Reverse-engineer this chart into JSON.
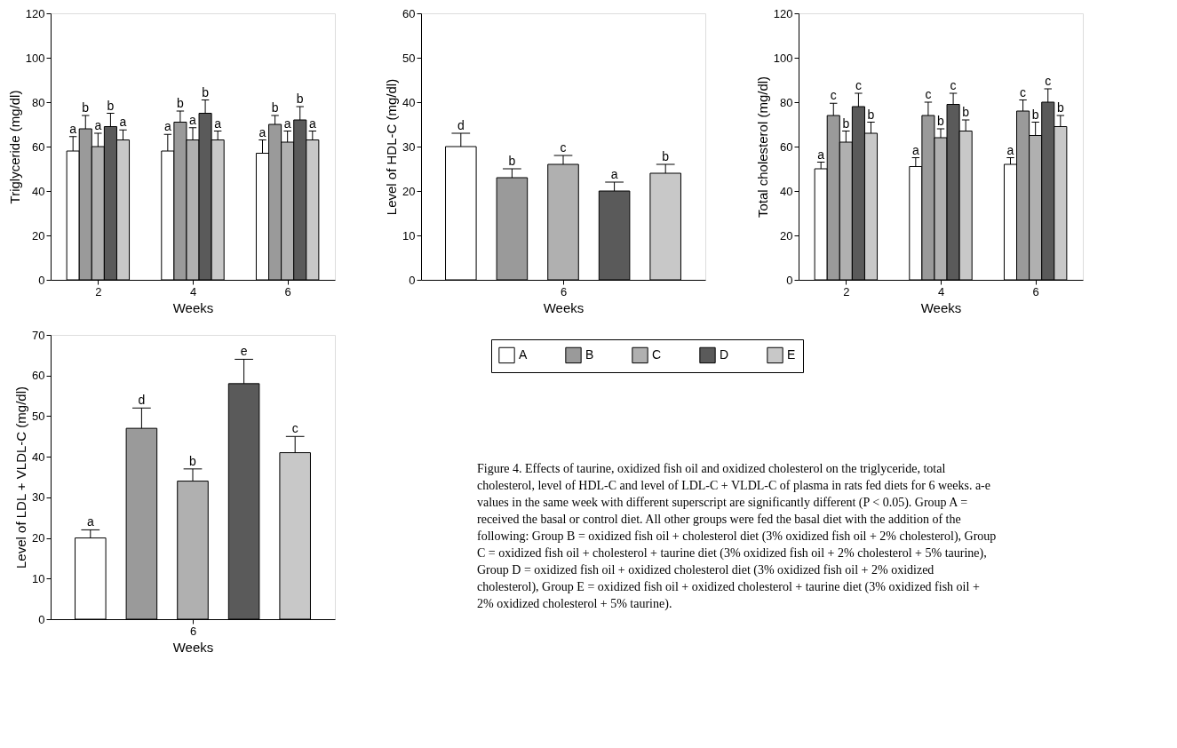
{
  "chart_data": [
    {
      "type": "bar",
      "ylabel": "Triglyceride (mg/dl)",
      "xlabel": "Weeks",
      "categories": [
        "2",
        "4",
        "6"
      ],
      "ylim": [
        0,
        120
      ],
      "yticks": [
        0,
        20,
        40,
        60,
        80,
        100,
        120
      ],
      "series": [
        {
          "color": "#ffffff",
          "values": [
            58,
            58,
            57
          ],
          "errors": [
            [
              58,
              64.5
            ],
            [
              58,
              65.5
            ],
            [
              57,
              63
            ]
          ],
          "value_labels": [
            "a",
            "a",
            "a"
          ]
        },
        {
          "color": "#9a9a9a",
          "values": [
            68,
            71,
            70
          ],
          "errors": [
            [
              68,
              74
            ],
            [
              71,
              76
            ],
            [
              70,
              74
            ]
          ],
          "value_labels": [
            "b",
            "b",
            "b"
          ]
        },
        {
          "color": "#b0b0b0",
          "values": [
            60,
            63,
            62
          ],
          "errors": [
            [
              60,
              66
            ],
            [
              63,
              68.5
            ],
            [
              62,
              67
            ]
          ],
          "value_labels": [
            "a",
            "a",
            "a"
          ]
        },
        {
          "color": "#5a5a5a",
          "values": [
            69,
            75,
            72
          ],
          "errors": [
            [
              69,
              75
            ],
            [
              75,
              81
            ],
            [
              72,
              78
            ]
          ],
          "value_labels": [
            "b",
            "b",
            "b"
          ]
        },
        {
          "color": "#c8c8c8",
          "values": [
            63,
            63,
            63
          ],
          "errors": [
            [
              63,
              67.5
            ],
            [
              63,
              67
            ],
            [
              63,
              67
            ]
          ],
          "value_labels": [
            "a",
            "a",
            "a"
          ]
        }
      ]
    },
    {
      "type": "bar",
      "ylabel": "Level of HDL-C (mg/dl)",
      "xlabel": "Weeks",
      "categories": [
        "6"
      ],
      "ylim": [
        0,
        60
      ],
      "yticks": [
        0,
        10,
        20,
        30,
        40,
        50,
        60
      ],
      "series": [
        {
          "color": "#ffffff",
          "values": [
            30
          ],
          "errors": [
            [
              30,
              33
            ]
          ],
          "value_labels": [
            "d"
          ]
        },
        {
          "color": "#9a9a9a",
          "values": [
            23
          ],
          "errors": [
            [
              23,
              25
            ]
          ],
          "value_labels": [
            "b"
          ]
        },
        {
          "color": "#b0b0b0",
          "values": [
            26
          ],
          "errors": [
            [
              26,
              28
            ]
          ],
          "value_labels": [
            "c"
          ]
        },
        {
          "color": "#5a5a5a",
          "values": [
            20
          ],
          "errors": [
            [
              20,
              22
            ]
          ],
          "value_labels": [
            "a"
          ]
        },
        {
          "color": "#c8c8c8",
          "values": [
            24
          ],
          "errors": [
            [
              24,
              26
            ]
          ],
          "value_labels": [
            "b"
          ]
        }
      ]
    },
    {
      "type": "bar",
      "ylabel": "Total cholesterol (mg/dl)",
      "xlabel": "Weeks",
      "categories": [
        "2",
        "4",
        "6"
      ],
      "ylim": [
        0,
        120
      ],
      "yticks": [
        0,
        20,
        40,
        60,
        80,
        100,
        120
      ],
      "series": [
        {
          "color": "#ffffff",
          "values": [
            50,
            51,
            52
          ],
          "errors": [
            [
              50,
              53
            ],
            [
              51,
              55
            ],
            [
              52,
              55
            ]
          ],
          "value_labels": [
            "a",
            "a",
            "a"
          ]
        },
        {
          "color": "#9a9a9a",
          "values": [
            74,
            74,
            76
          ],
          "errors": [
            [
              74,
              79.5
            ],
            [
              74,
              80
            ],
            [
              76,
              81
            ]
          ],
          "value_labels": [
            "c",
            "c",
            "c"
          ]
        },
        {
          "color": "#b0b0b0",
          "values": [
            62,
            64,
            65
          ],
          "errors": [
            [
              62,
              67
            ],
            [
              64,
              68
            ],
            [
              65,
              71
            ]
          ],
          "value_labels": [
            "b",
            "b",
            "b"
          ]
        },
        {
          "color": "#5a5a5a",
          "values": [
            78,
            79,
            80
          ],
          "errors": [
            [
              78,
              84
            ],
            [
              79,
              84
            ],
            [
              80,
              86
            ]
          ],
          "value_labels": [
            "c",
            "c",
            "c"
          ]
        },
        {
          "color": "#c8c8c8",
          "values": [
            66,
            67,
            69
          ],
          "errors": [
            [
              66,
              71
            ],
            [
              67,
              72
            ],
            [
              69,
              74
            ]
          ],
          "value_labels": [
            "b",
            "b",
            "b"
          ]
        }
      ]
    },
    {
      "type": "bar",
      "ylabel": "Level of LDL + VLDL-C (mg/dl)",
      "xlabel": "Weeks",
      "categories": [
        "6"
      ],
      "ylim": [
        0,
        70
      ],
      "yticks": [
        0,
        10,
        20,
        30,
        40,
        50,
        60,
        70
      ],
      "legend": "top right",
      "annotations": [
        "Figure 4. Effects of taurine, oxidized fish oil and oxidized cholesterol on the triglyceride, total cholesterol, level of HDL-C and level of LDL-C + VLDL-C of plasma in rats fed diets for 6 weeks.  a-e values in the same week with different superscript are significantly different (P < 0.05).  Group A = received the basal or control diet.  All other groups were fed the basal diet with the addition of the following: Group B = oxidized fish oil + cholesterol diet (3% oxidized fish oil + 2% cholesterol), Group C = oxidized fish oil + cholesterol + taurine diet (3% oxidized fish oil + 2% cholesterol + 5% taurine), Group D = oxidized fish oil + oxidized cholesterol diet (3% oxidized fish oil + 2% oxidized cholesterol), Group E = oxidized fish oil + oxidized cholesterol + taurine diet (3% oxidized fish oil + 2% oxidized cholesterol + 5% taurine)."
      ],
      "series": [
        {
          "name": "A",
          "color": "#ffffff",
          "values": [
            20
          ],
          "errors": [
            [
              20,
              22
            ]
          ],
          "value_labels": [
            "a"
          ]
        },
        {
          "name": "B",
          "color": "#9a9a9a",
          "values": [
            47
          ],
          "errors": [
            [
              47,
              52
            ]
          ],
          "value_labels": [
            "d"
          ]
        },
        {
          "name": "C",
          "color": "#b0b0b0",
          "values": [
            34
          ],
          "errors": [
            [
              34,
              37
            ]
          ],
          "value_labels": [
            "b"
          ]
        },
        {
          "name": "D",
          "color": "#5a5a5a",
          "values": [
            58
          ],
          "errors": [
            [
              58,
              64
            ]
          ],
          "value_labels": [
            "e"
          ]
        },
        {
          "name": "E",
          "color": "#c8c8c8",
          "values": [
            41
          ],
          "errors": [
            [
              41,
              45
            ]
          ],
          "value_labels": [
            "c"
          ]
        }
      ]
    }
  ]
}
